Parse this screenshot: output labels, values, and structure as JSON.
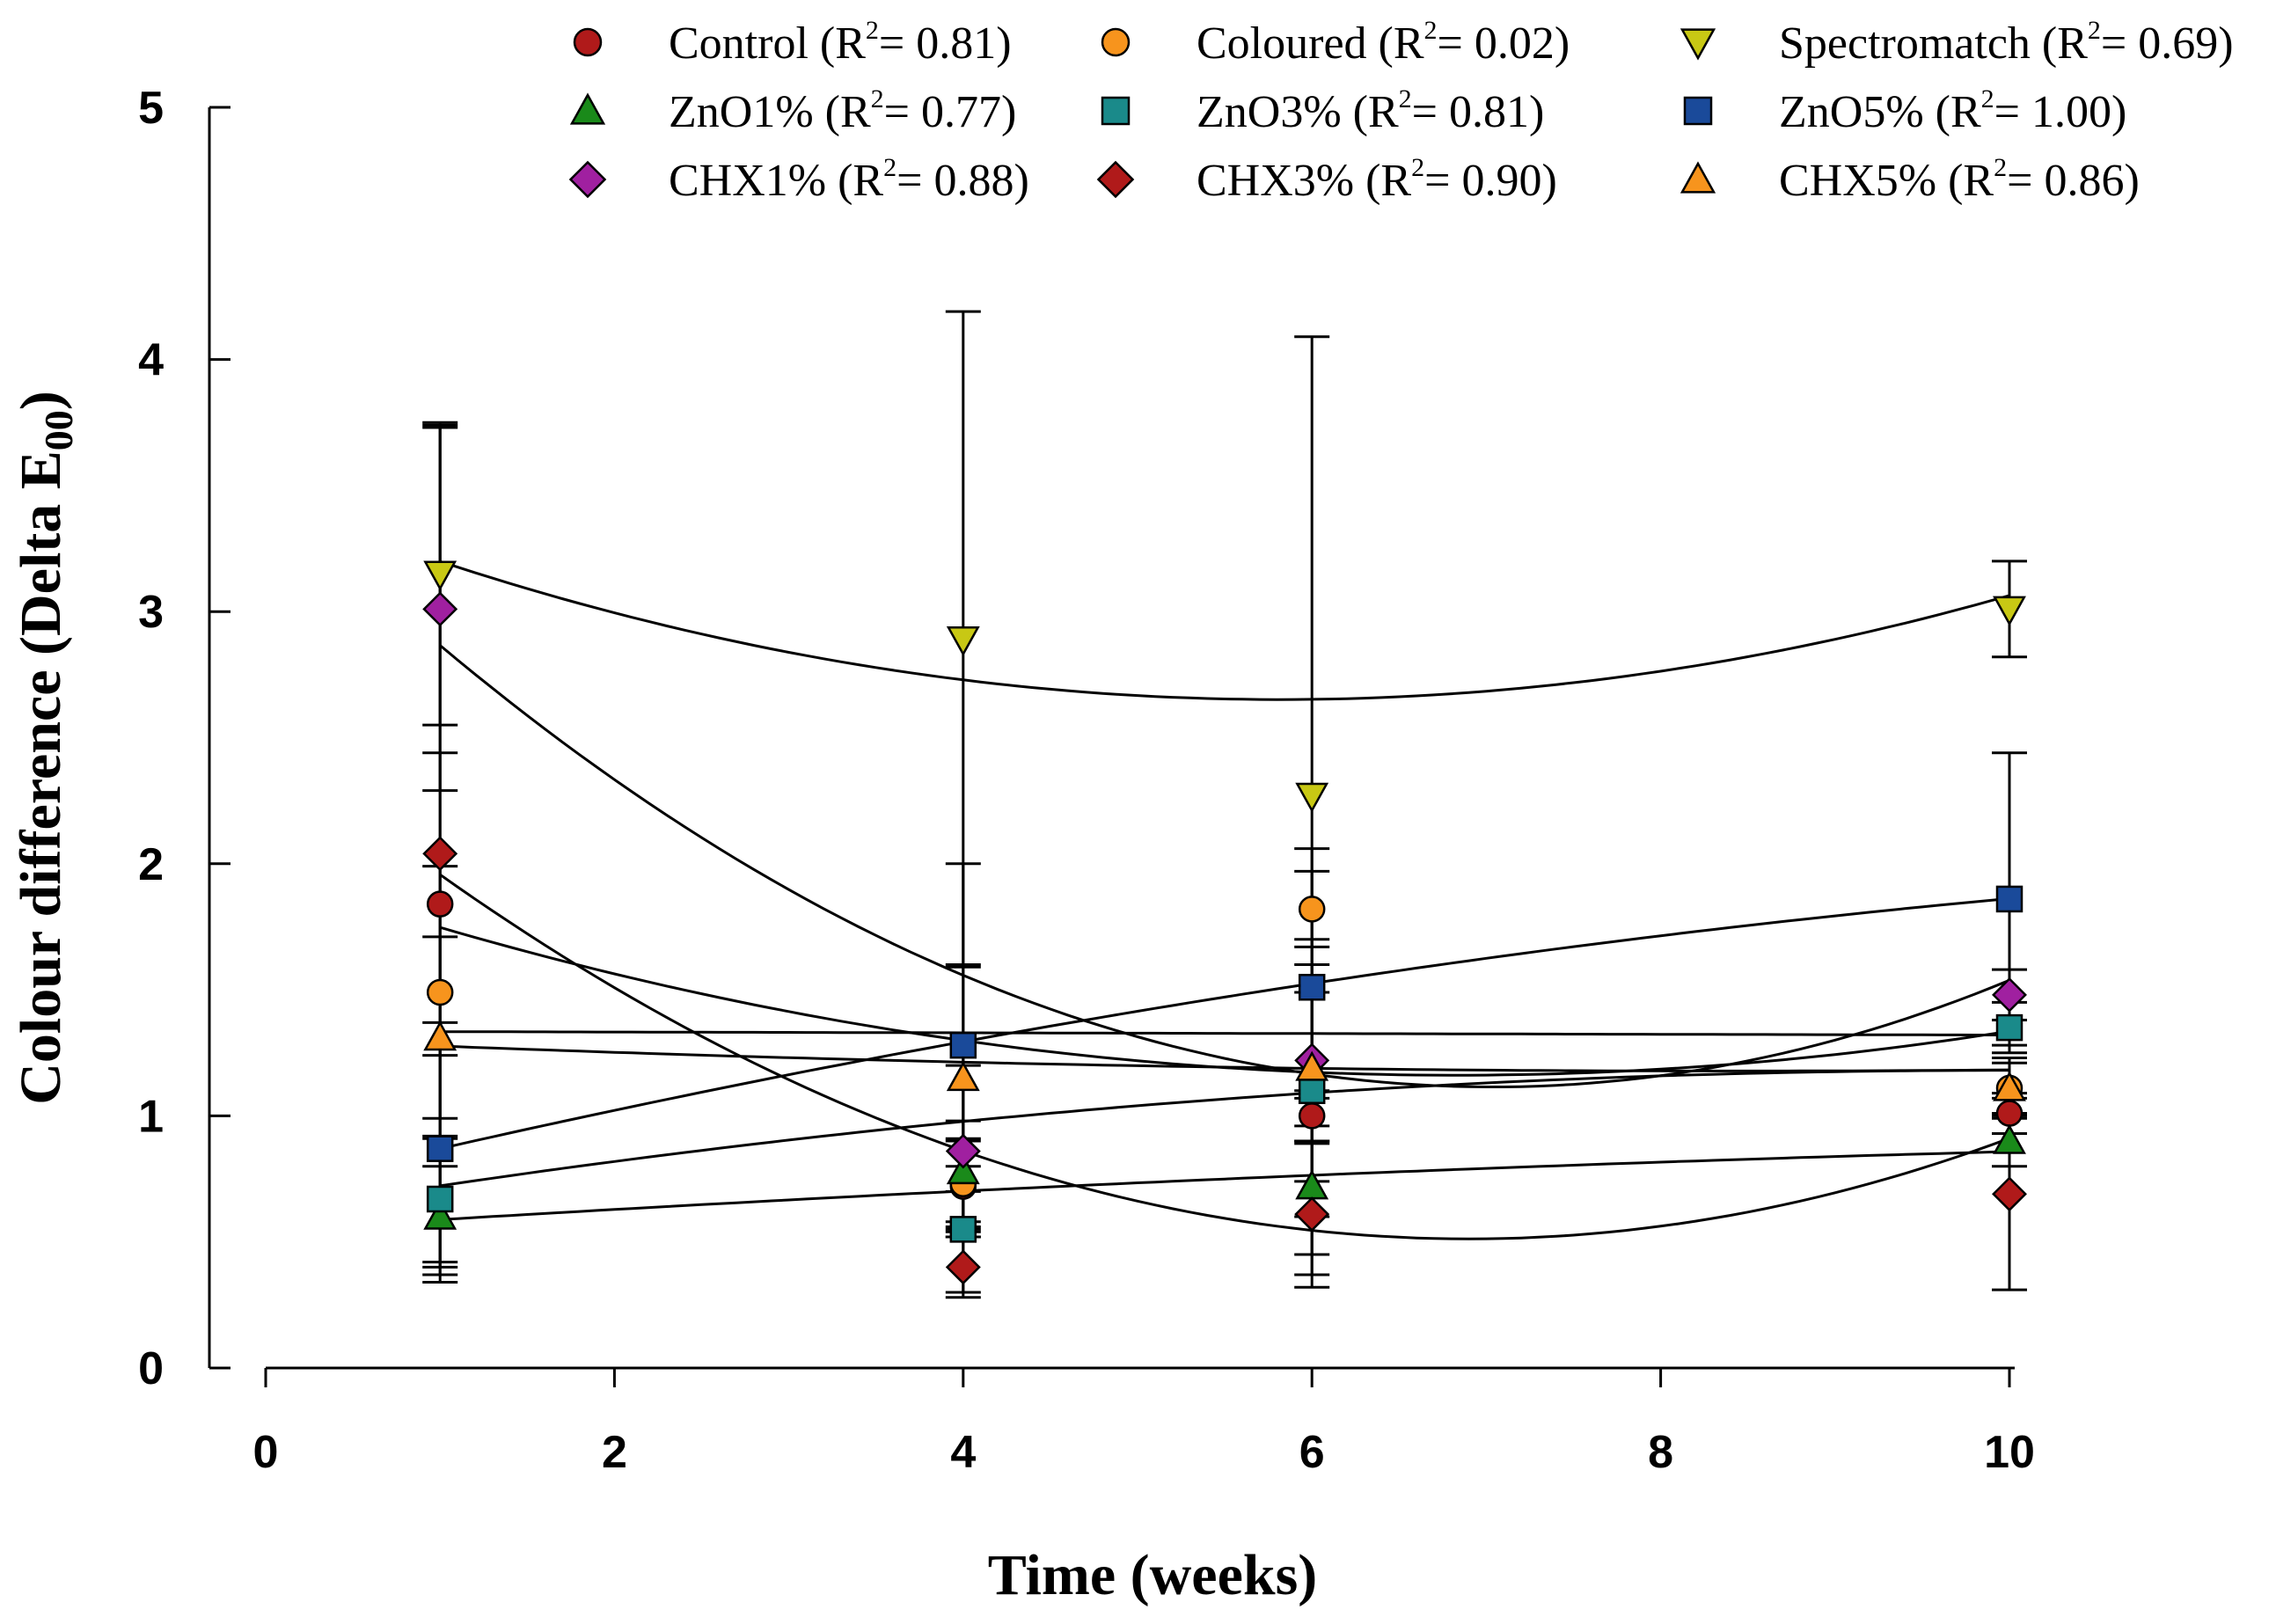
{
  "chart_data": {
    "type": "scatter",
    "xlabel": "Time (weeks)",
    "ylabel": "Colour difference (Delta E",
    "ylabel_subscript": "00",
    "ylabel_suffix": ")",
    "xlim": [
      0,
      10.2
    ],
    "ylim": [
      0,
      5
    ],
    "xticks": [
      0,
      2,
      4,
      6,
      8,
      10
    ],
    "yticks": [
      0,
      1,
      2,
      3,
      4,
      5
    ],
    "x": [
      1,
      4,
      6,
      10
    ],
    "legend_position": "top",
    "series": [
      {
        "name": "Control",
        "r2": "0.81",
        "marker": "circle",
        "color": "#b01a1a",
        "values": [
          1.84,
          0.72,
          1.0,
          1.01
        ],
        "errors": [
          0.6,
          0.18,
          0.1,
          0.08
        ],
        "fit": [
          0.0173,
          -0.236,
          1.966
        ]
      },
      {
        "name": "Coloured",
        "r2": "0.02",
        "marker": "circle",
        "color": "#f7941d",
        "values": [
          1.49,
          0.73,
          1.82,
          1.11
        ],
        "errors": [
          0.5,
          0.18,
          0.15,
          0.1
        ],
        "fit": [
          0.0,
          -0.0015,
          1.3355
        ]
      },
      {
        "name": "Spectromatch",
        "r2": "0.69",
        "marker": "triangle-down",
        "color": "#c8c814",
        "values": [
          3.15,
          2.89,
          2.27,
          3.01
        ],
        "errors": [
          0.6,
          1.3,
          1.82,
          0.19
        ],
        "fit": [
          0.0236,
          -0.2746,
          3.45
        ]
      },
      {
        "name": "ZnO1%",
        "r2": "0.77",
        "marker": "triangle-up",
        "color": "#1a8a1a",
        "values": [
          0.6,
          0.78,
          0.72,
          0.9
        ],
        "errors": [
          0.2,
          0.2,
          0.35,
          0.1
        ],
        "fit": [
          -0.0013,
          0.0443,
          0.5453
        ]
      },
      {
        "name": "ZnO3%",
        "r2": "0.81",
        "marker": "square",
        "color": "#1a8a8a",
        "values": [
          0.67,
          0.55,
          1.1,
          1.35
        ],
        "errors": [
          0.25,
          0.25,
          0.5,
          0.1
        ],
        "fit": [
          -0.0057,
          0.1136,
          0.6146
        ]
      },
      {
        "name": "ZnO5%",
        "r2": "1.00",
        "marker": "square",
        "color": "#1a4a9a",
        "values": [
          0.87,
          1.28,
          1.51,
          1.86
        ],
        "errors": [
          0.5,
          0.72,
          0.55,
          0.58
        ],
        "fit": [
          -0.0052,
          0.1674,
          0.7078
        ]
      },
      {
        "name": "CHX1%",
        "r2": "0.88",
        "marker": "diamond",
        "color": "#a020a0",
        "values": [
          3.01,
          0.86,
          1.22,
          1.48
        ],
        "errors": [
          0.72,
          0.34,
          0.48,
          0.1
        ],
        "fit": [
          0.0481,
          -0.6767,
          3.4947
        ]
      },
      {
        "name": "CHX3%",
        "r2": "0.90",
        "marker": "diamond",
        "color": "#b01a1a",
        "values": [
          2.04,
          0.4,
          0.61,
          0.69
        ],
        "errors": [
          1.7,
          0.12,
          0.29,
          0.38
        ],
        "fit": [
          0.0415,
          -0.5727,
          2.4879
        ]
      },
      {
        "name": "CHX5%",
        "r2": "0.86",
        "marker": "triangle-up",
        "color": "#f7941d",
        "values": [
          1.31,
          1.15,
          1.19,
          1.11
        ],
        "errors": [
          0.4,
          0.45,
          0.3,
          0.12
        ],
        "fit": [
          0.0018,
          -0.0303,
          1.3054
        ]
      }
    ]
  }
}
